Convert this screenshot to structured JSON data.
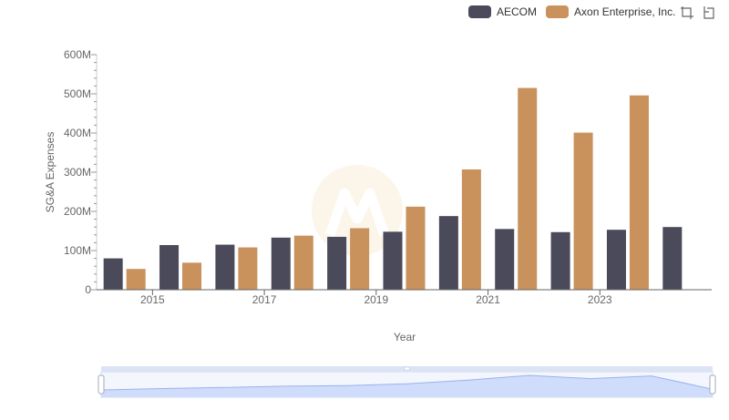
{
  "legend": {
    "items": [
      {
        "label": "AECOM",
        "color": "#4a4a5a"
      },
      {
        "label": "Axon Enterprise, Inc.",
        "color": "#c9915c"
      }
    ]
  },
  "toolbar": {
    "icons": [
      "rect-select-icon",
      "restore-icon"
    ]
  },
  "chart_data": {
    "type": "bar",
    "xlabel": "Year",
    "ylabel": "SG&A Expenses",
    "ylim": [
      0,
      600000000
    ],
    "yticks": [
      {
        "value": 0,
        "label": "0"
      },
      {
        "value": 100000000,
        "label": "100M"
      },
      {
        "value": 200000000,
        "label": "200M"
      },
      {
        "value": 300000000,
        "label": "300M"
      },
      {
        "value": 400000000,
        "label": "400M"
      },
      {
        "value": 500000000,
        "label": "500M"
      },
      {
        "value": 600000000,
        "label": "600M"
      }
    ],
    "categories": [
      "2014",
      "2015",
      "2016",
      "2017",
      "2018",
      "2019",
      "2020",
      "2021",
      "2022",
      "2023",
      "2024"
    ],
    "xtick_labels": [
      "2015",
      "2017",
      "2019",
      "2021",
      "2023"
    ],
    "series": [
      {
        "name": "AECOM",
        "color": "#4a4a5a",
        "values": [
          80000000,
          114000000,
          115000000,
          133000000,
          135000000,
          148000000,
          188000000,
          155000000,
          147000000,
          153000000,
          160000000
        ]
      },
      {
        "name": "Axon Enterprise, Inc.",
        "color": "#c9915c",
        "values": [
          53000000,
          69000000,
          108000000,
          138000000,
          157000000,
          212000000,
          307000000,
          515000000,
          401000000,
          496000000,
          null
        ]
      }
    ],
    "grid": false,
    "legend_position": "top-right",
    "zoom_slider": {
      "start_fraction": 0,
      "end_fraction": 1
    }
  }
}
